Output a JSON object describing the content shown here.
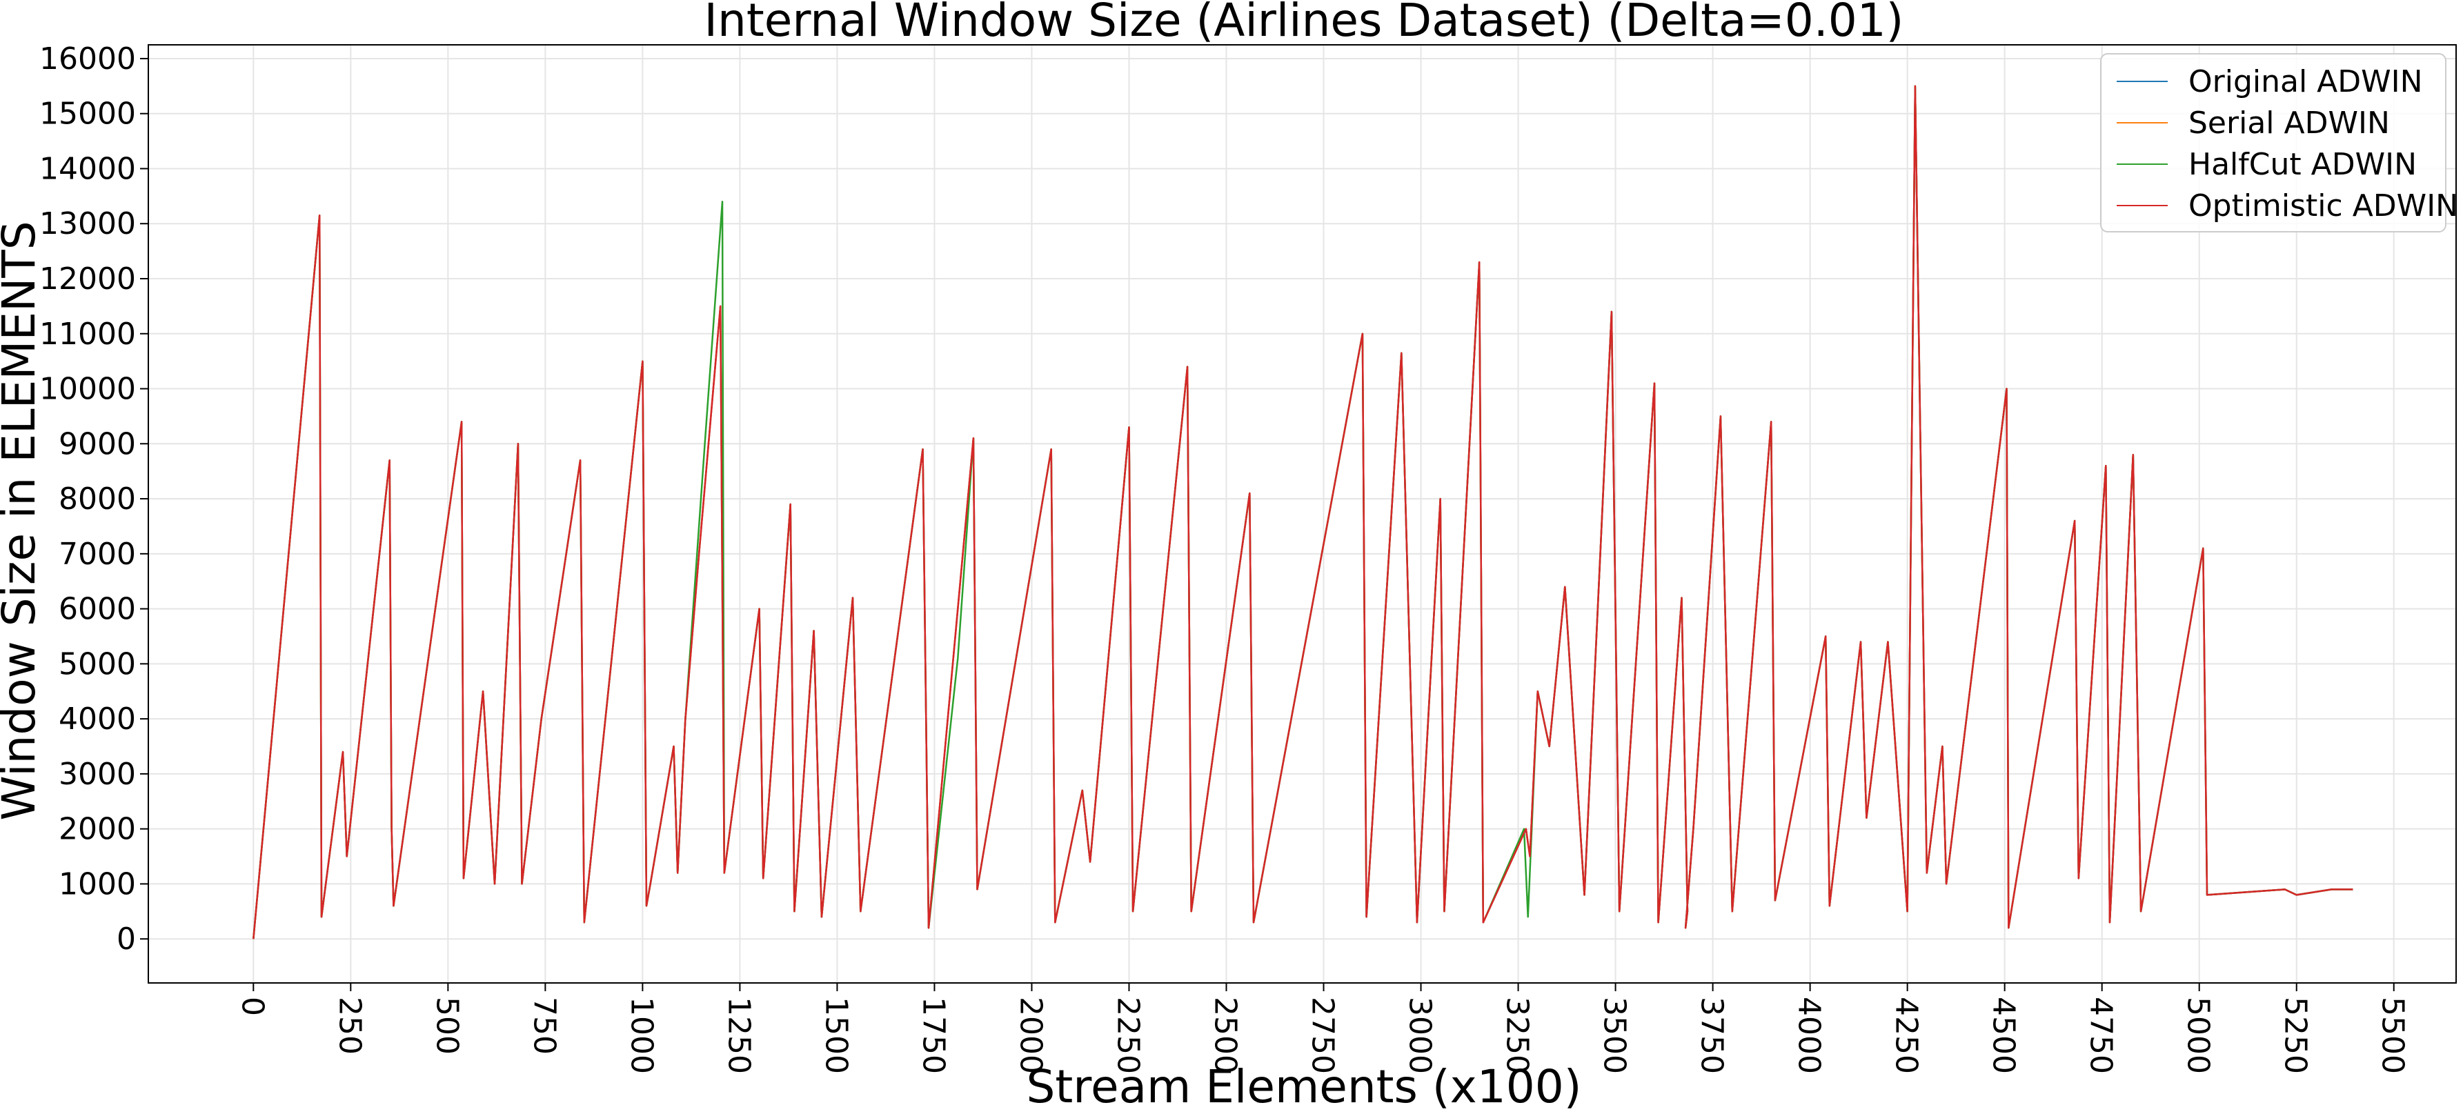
{
  "chart_data": {
    "type": "line",
    "title": "Internal Window Size (Airlines Dataset) (Delta=0.01)",
    "xlabel": "Stream Elements (x100)",
    "ylabel": "Window Size in ELEMENTS",
    "xlim": [
      -270,
      5660
    ],
    "ylim": [
      -800,
      16250
    ],
    "x_ticks": [
      0,
      250,
      500,
      750,
      1000,
      1250,
      1500,
      1750,
      2000,
      2250,
      2500,
      2750,
      3000,
      3250,
      3500,
      3750,
      4000,
      4250,
      4500,
      4750,
      5000,
      5250,
      5500
    ],
    "x_tick_labels": [
      "0",
      "250",
      "500",
      "750",
      "1000",
      "1250",
      "1500",
      "1750",
      "2000",
      "2250",
      "2500",
      "2750",
      "3000",
      "3250",
      "3500",
      "3750",
      "4000",
      "4250",
      "4500",
      "4750",
      "5000",
      "5250",
      "5500"
    ],
    "y_ticks": [
      0,
      1000,
      2000,
      3000,
      4000,
      5000,
      6000,
      7000,
      8000,
      9000,
      10000,
      11000,
      12000,
      13000,
      14000,
      15000,
      16000
    ],
    "y_tick_labels": [
      "0",
      "1000",
      "2000",
      "3000",
      "4000",
      "5000",
      "6000",
      "7000",
      "8000",
      "9000",
      "10000",
      "11000",
      "12000",
      "13000",
      "14000",
      "15000",
      "16000"
    ],
    "grid": true,
    "legend_position": "top-right",
    "series": [
      {
        "name": "Original ADWIN",
        "color": "#1f77b4",
        "x": [
          0,
          170,
          175,
          230,
          240,
          350,
          355,
          360,
          535,
          540,
          590,
          620,
          680,
          690,
          740,
          840,
          850,
          1000,
          1010,
          1020,
          1080,
          1090,
          1110,
          1145,
          1200,
          1210,
          1300,
          1310,
          1380,
          1390,
          1440,
          1460,
          1540,
          1560,
          1720,
          1735,
          1850,
          1860,
          2050,
          2060,
          2130,
          2150,
          2250,
          2260,
          2400,
          2410,
          2560,
          2570,
          2850,
          2860,
          2950,
          2990,
          3050,
          3060,
          3150,
          3160,
          3270,
          3280,
          3300,
          3330,
          3370,
          3420,
          3490,
          3510,
          3600,
          3610,
          3670,
          3685,
          3680,
          3700,
          3770,
          3800,
          3900,
          3910,
          4040,
          4050,
          4130,
          4145,
          4200,
          4250,
          4270,
          4300,
          4340,
          4350,
          4505,
          4510,
          4680,
          4690,
          4760,
          4770,
          4830,
          4850,
          5010,
          5020,
          5220,
          5250,
          5340,
          5350,
          5390,
          5395
        ],
        "y": [
          0,
          13150,
          400,
          3400,
          1500,
          8700,
          2000,
          600,
          9400,
          1100,
          4500,
          1000,
          9000,
          1000,
          4000,
          8700,
          300,
          10500,
          600,
          1000,
          3500,
          1200,
          4000,
          7000,
          11500,
          1200,
          6000,
          1100,
          7900,
          500,
          5600,
          400,
          6200,
          500,
          8900,
          200,
          9100,
          900,
          8900,
          300,
          2700,
          1400,
          9300,
          500,
          10400,
          500,
          8100,
          300,
          11000,
          400,
          10650,
          300,
          8000,
          500,
          12300,
          300,
          2000,
          1500,
          4500,
          3500,
          6400,
          800,
          11400,
          500,
          10100,
          300,
          6200,
          500,
          200,
          2000,
          9500,
          500,
          9400,
          700,
          5500,
          600,
          5400,
          2200,
          5400,
          500,
          15500,
          1200,
          3500,
          1000,
          10000,
          200,
          7600,
          1100,
          8600,
          300,
          8800,
          500,
          7100,
          800,
          900,
          800,
          900,
          900,
          900,
          900
        ]
      },
      {
        "name": "Serial ADWIN",
        "color": "#ff7f0e",
        "x": [
          0,
          170,
          175,
          230,
          240,
          350,
          355,
          360,
          535,
          540,
          590,
          620,
          680,
          690,
          740,
          840,
          850,
          1000,
          1010,
          1020,
          1080,
          1090,
          1110,
          1145,
          1200,
          1210,
          1300,
          1310,
          1380,
          1390,
          1440,
          1460,
          1540,
          1560,
          1720,
          1735,
          1850,
          1860,
          2050,
          2060,
          2130,
          2150,
          2250,
          2260,
          2400,
          2410,
          2560,
          2570,
          2850,
          2860,
          2950,
          2990,
          3050,
          3060,
          3150,
          3160,
          3270,
          3280,
          3300,
          3330,
          3370,
          3420,
          3490,
          3510,
          3600,
          3610,
          3670,
          3685,
          3680,
          3700,
          3770,
          3800,
          3900,
          3910,
          4040,
          4050,
          4130,
          4145,
          4200,
          4250,
          4270,
          4300,
          4340,
          4350,
          4505,
          4510,
          4680,
          4690,
          4760,
          4770,
          4830,
          4850,
          5010,
          5020,
          5220,
          5250,
          5340,
          5350,
          5390,
          5395
        ],
        "y": [
          0,
          13150,
          400,
          3400,
          1500,
          8700,
          2000,
          600,
          9400,
          1100,
          4500,
          1000,
          9000,
          1000,
          4000,
          8700,
          300,
          10500,
          600,
          1000,
          3500,
          1200,
          4000,
          7000,
          11500,
          1200,
          6000,
          1100,
          7900,
          500,
          5600,
          400,
          6200,
          500,
          8900,
          200,
          9100,
          900,
          8900,
          300,
          2700,
          1400,
          9300,
          500,
          10400,
          500,
          8100,
          300,
          11000,
          400,
          10650,
          300,
          8000,
          500,
          12300,
          300,
          2000,
          1500,
          4500,
          3500,
          6400,
          800,
          11400,
          500,
          10100,
          300,
          6200,
          500,
          200,
          2000,
          9500,
          500,
          9400,
          700,
          5500,
          600,
          5400,
          2200,
          5400,
          500,
          15500,
          1200,
          3500,
          1000,
          10000,
          200,
          7600,
          1100,
          8600,
          300,
          8800,
          500,
          7100,
          800,
          900,
          800,
          900,
          900,
          900,
          900
        ]
      },
      {
        "name": "HalfCut ADWIN",
        "color": "#2ca02c",
        "x": [
          0,
          170,
          175,
          230,
          240,
          350,
          355,
          360,
          535,
          540,
          590,
          620,
          680,
          690,
          740,
          840,
          850,
          1000,
          1010,
          1020,
          1080,
          1090,
          1110,
          1160,
          1205,
          1210,
          1300,
          1310,
          1380,
          1390,
          1440,
          1460,
          1540,
          1560,
          1720,
          1735,
          1810,
          1850,
          1860,
          2050,
          2060,
          2130,
          2150,
          2250,
          2260,
          2400,
          2410,
          2560,
          2570,
          2850,
          2860,
          2950,
          2990,
          3050,
          3060,
          3150,
          3160,
          3265,
          3275,
          3300,
          3330,
          3370,
          3420,
          3490,
          3510,
          3600,
          3610,
          3670,
          3685,
          3680,
          3700,
          3770,
          3800,
          3900,
          3910,
          4040,
          4050,
          4130,
          4145,
          4200,
          4250,
          4270,
          4300,
          4340,
          4350,
          4505,
          4510,
          4680,
          4690,
          4760,
          4770,
          4830,
          4850,
          5010,
          5020,
          5220,
          5250,
          5340,
          5350,
          5390,
          5395
        ],
        "y": [
          0,
          13150,
          400,
          3400,
          1500,
          8700,
          2000,
          600,
          9400,
          1100,
          4500,
          1000,
          9000,
          1000,
          4000,
          8700,
          300,
          10500,
          600,
          1000,
          3500,
          1200,
          4000,
          9000,
          13400,
          1200,
          6000,
          1100,
          7900,
          500,
          5600,
          400,
          6200,
          500,
          8900,
          200,
          5100,
          9100,
          900,
          8900,
          300,
          2700,
          1400,
          9300,
          500,
          10400,
          500,
          8100,
          300,
          11000,
          400,
          10650,
          300,
          8000,
          500,
          12300,
          300,
          2000,
          400,
          4500,
          3500,
          6400,
          800,
          11400,
          500,
          10100,
          300,
          6200,
          500,
          200,
          2000,
          9500,
          500,
          9400,
          700,
          5500,
          600,
          5400,
          2200,
          5400,
          500,
          15500,
          1200,
          3500,
          1000,
          10000,
          200,
          7600,
          1100,
          8600,
          300,
          8800,
          500,
          7100,
          800,
          900,
          800,
          900,
          900,
          900,
          900
        ]
      },
      {
        "name": "Optimistic ADWIN",
        "color": "#d62728",
        "x": [
          0,
          170,
          175,
          230,
          240,
          350,
          355,
          360,
          535,
          540,
          590,
          620,
          680,
          690,
          740,
          840,
          850,
          1000,
          1010,
          1020,
          1080,
          1090,
          1110,
          1145,
          1200,
          1210,
          1300,
          1310,
          1380,
          1390,
          1440,
          1460,
          1540,
          1560,
          1720,
          1735,
          1850,
          1860,
          2050,
          2060,
          2130,
          2150,
          2250,
          2260,
          2400,
          2410,
          2560,
          2570,
          2850,
          2860,
          2950,
          2990,
          3050,
          3060,
          3150,
          3160,
          3270,
          3280,
          3300,
          3330,
          3370,
          3420,
          3490,
          3510,
          3600,
          3610,
          3670,
          3685,
          3680,
          3700,
          3770,
          3800,
          3900,
          3910,
          4040,
          4050,
          4130,
          4145,
          4200,
          4250,
          4270,
          4300,
          4340,
          4350,
          4505,
          4510,
          4680,
          4690,
          4760,
          4770,
          4830,
          4850,
          5010,
          5020,
          5220,
          5250,
          5340,
          5350,
          5390,
          5395
        ],
        "y": [
          0,
          13150,
          400,
          3400,
          1500,
          8700,
          2000,
          600,
          9400,
          1100,
          4500,
          1000,
          9000,
          1000,
          4000,
          8700,
          300,
          10500,
          600,
          1000,
          3500,
          1200,
          4000,
          7000,
          11500,
          1200,
          6000,
          1100,
          7900,
          500,
          5600,
          400,
          6200,
          500,
          8900,
          200,
          9100,
          900,
          8900,
          300,
          2700,
          1400,
          9300,
          500,
          10400,
          500,
          8100,
          300,
          11000,
          400,
          10650,
          300,
          8000,
          500,
          12300,
          300,
          2000,
          1500,
          4500,
          3500,
          6400,
          800,
          11400,
          500,
          10100,
          300,
          6200,
          500,
          200,
          2000,
          9500,
          500,
          9400,
          700,
          5500,
          600,
          5400,
          2200,
          5400,
          500,
          15500,
          1200,
          3500,
          1000,
          10000,
          200,
          7600,
          1100,
          8600,
          300,
          8800,
          500,
          7100,
          800,
          900,
          800,
          900,
          900,
          900,
          900
        ]
      }
    ]
  }
}
